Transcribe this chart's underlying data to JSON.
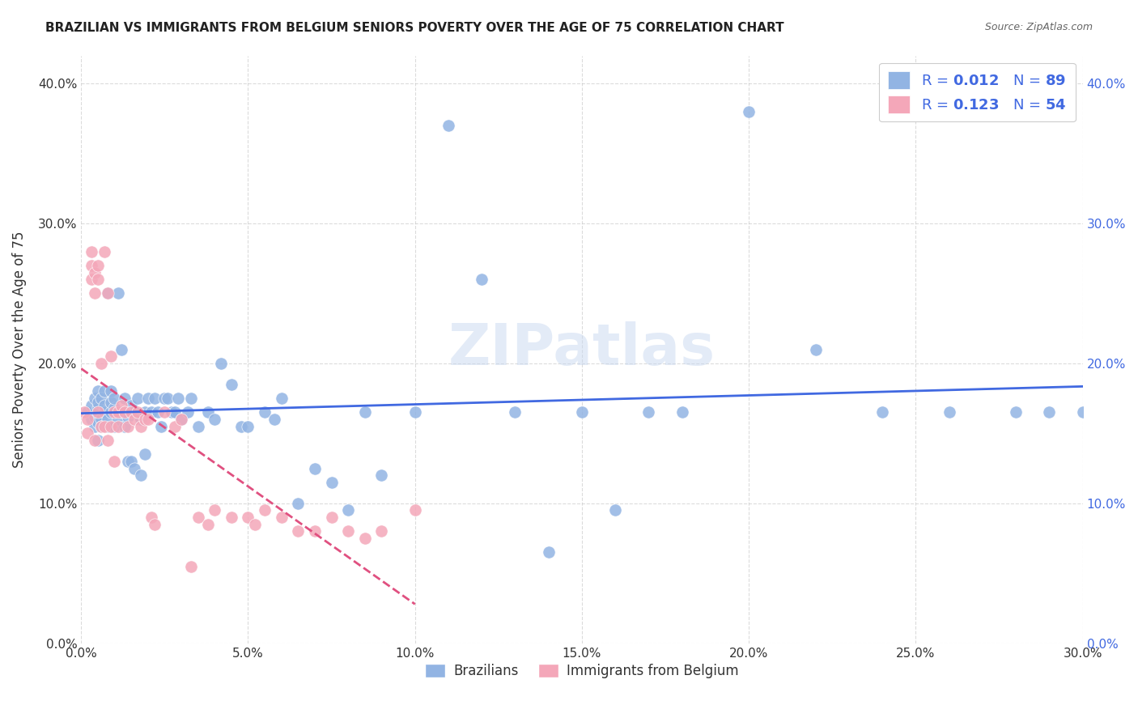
{
  "title": "BRAZILIAN VS IMMIGRANTS FROM BELGIUM SENIORS POVERTY OVER THE AGE OF 75 CORRELATION CHART",
  "source": "Source: ZipAtlas.com",
  "ylabel": "Seniors Poverty Over the Age of 75",
  "xlabel_ticks": [
    "0.0%",
    "5.0%",
    "10.0%",
    "15.0%",
    "20.0%",
    "25.0%",
    "30.0%"
  ],
  "ylabel_ticks": [
    "0.0%",
    "10.0%",
    "20.0%",
    "30.0%",
    "40.0%"
  ],
  "xlim": [
    0.0,
    0.3
  ],
  "ylim": [
    0.0,
    0.42
  ],
  "watermark": "ZIPatlas",
  "blue_color": "#92b4e3",
  "pink_color": "#f4a7b9",
  "blue_line_color": "#4169e1",
  "pink_line_color": "#e05080",
  "brazilians_x": [
    0.002,
    0.003,
    0.003,
    0.004,
    0.004,
    0.004,
    0.005,
    0.005,
    0.005,
    0.005,
    0.005,
    0.006,
    0.006,
    0.006,
    0.007,
    0.007,
    0.007,
    0.008,
    0.008,
    0.008,
    0.009,
    0.009,
    0.009,
    0.01,
    0.01,
    0.01,
    0.011,
    0.011,
    0.012,
    0.012,
    0.013,
    0.013,
    0.013,
    0.014,
    0.014,
    0.015,
    0.015,
    0.016,
    0.016,
    0.017,
    0.018,
    0.018,
    0.019,
    0.019,
    0.02,
    0.021,
    0.022,
    0.023,
    0.024,
    0.025,
    0.026,
    0.027,
    0.028,
    0.029,
    0.03,
    0.032,
    0.033,
    0.035,
    0.038,
    0.04,
    0.042,
    0.045,
    0.048,
    0.05,
    0.055,
    0.058,
    0.06,
    0.065,
    0.07,
    0.075,
    0.08,
    0.085,
    0.09,
    0.1,
    0.11,
    0.12,
    0.13,
    0.14,
    0.15,
    0.16,
    0.17,
    0.18,
    0.2,
    0.22,
    0.24,
    0.26,
    0.28,
    0.29,
    0.3
  ],
  "brazilians_y": [
    0.165,
    0.17,
    0.16,
    0.155,
    0.162,
    0.175,
    0.158,
    0.168,
    0.172,
    0.18,
    0.145,
    0.16,
    0.175,
    0.155,
    0.165,
    0.18,
    0.17,
    0.155,
    0.16,
    0.25,
    0.165,
    0.172,
    0.18,
    0.155,
    0.168,
    0.175,
    0.16,
    0.25,
    0.165,
    0.21,
    0.175,
    0.165,
    0.155,
    0.162,
    0.13,
    0.17,
    0.13,
    0.165,
    0.125,
    0.175,
    0.16,
    0.12,
    0.165,
    0.135,
    0.175,
    0.165,
    0.175,
    0.165,
    0.155,
    0.175,
    0.175,
    0.165,
    0.165,
    0.175,
    0.16,
    0.165,
    0.175,
    0.155,
    0.165,
    0.16,
    0.2,
    0.185,
    0.155,
    0.155,
    0.165,
    0.16,
    0.175,
    0.1,
    0.125,
    0.115,
    0.095,
    0.165,
    0.12,
    0.165,
    0.37,
    0.26,
    0.165,
    0.065,
    0.165,
    0.095,
    0.165,
    0.165,
    0.38,
    0.21,
    0.165,
    0.165,
    0.165,
    0.165,
    0.165
  ],
  "belgium_x": [
    0.001,
    0.002,
    0.002,
    0.003,
    0.003,
    0.003,
    0.004,
    0.004,
    0.004,
    0.005,
    0.005,
    0.005,
    0.006,
    0.006,
    0.007,
    0.007,
    0.008,
    0.008,
    0.009,
    0.009,
    0.01,
    0.01,
    0.011,
    0.011,
    0.012,
    0.013,
    0.014,
    0.015,
    0.016,
    0.017,
    0.018,
    0.019,
    0.02,
    0.021,
    0.022,
    0.025,
    0.028,
    0.03,
    0.033,
    0.035,
    0.038,
    0.04,
    0.045,
    0.05,
    0.052,
    0.055,
    0.06,
    0.065,
    0.07,
    0.075,
    0.08,
    0.085,
    0.09,
    0.1
  ],
  "belgium_y": [
    0.165,
    0.16,
    0.15,
    0.28,
    0.27,
    0.26,
    0.265,
    0.25,
    0.145,
    0.27,
    0.26,
    0.165,
    0.2,
    0.155,
    0.28,
    0.155,
    0.25,
    0.145,
    0.205,
    0.155,
    0.165,
    0.13,
    0.165,
    0.155,
    0.17,
    0.165,
    0.155,
    0.165,
    0.16,
    0.165,
    0.155,
    0.16,
    0.16,
    0.09,
    0.085,
    0.165,
    0.155,
    0.16,
    0.055,
    0.09,
    0.085,
    0.095,
    0.09,
    0.09,
    0.085,
    0.095,
    0.09,
    0.08,
    0.08,
    0.09,
    0.08,
    0.075,
    0.08,
    0.095
  ]
}
